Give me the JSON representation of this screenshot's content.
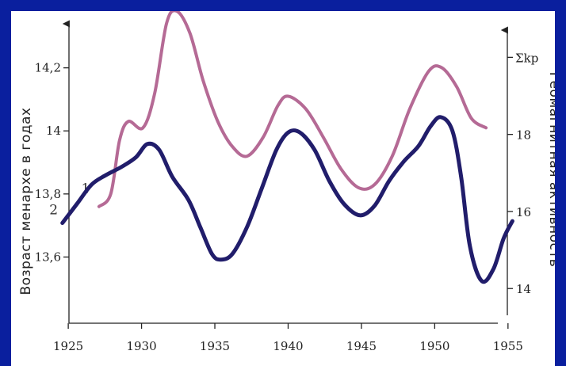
{
  "chart_data": {
    "type": "line",
    "x_ticks": [
      "1925",
      "1930",
      "1935",
      "1940",
      "1945",
      "1950",
      "1955"
    ],
    "y_left": {
      "label": "Возраст менархе в годах",
      "ticks": [
        "13,6",
        "13,8",
        "14",
        "14,2"
      ],
      "tick_values": [
        13.6,
        13.8,
        14.0,
        14.2
      ],
      "range": [
        13.39,
        14.38
      ]
    },
    "y_right": {
      "label": "Геомагнитная активность",
      "ticks": [
        "14",
        "16",
        "18"
      ],
      "tick_values": [
        14,
        16,
        18
      ],
      "unit_label": "Σkp",
      "unit_value": 20,
      "range": [
        13.1,
        21.2
      ]
    },
    "series": [
      {
        "name": "1",
        "axis": "left",
        "color": "#b56a95",
        "points": [
          [
            1927.1,
            13.76
          ],
          [
            1927.9,
            13.8
          ],
          [
            1928.5,
            13.97
          ],
          [
            1929.1,
            14.03
          ],
          [
            1930.1,
            14.01
          ],
          [
            1930.9,
            14.12
          ],
          [
            1931.7,
            14.34
          ],
          [
            1932.4,
            14.38
          ],
          [
            1933.3,
            14.31
          ],
          [
            1934.2,
            14.16
          ],
          [
            1935.2,
            14.03
          ],
          [
            1936.2,
            13.95
          ],
          [
            1937.2,
            13.92
          ],
          [
            1938.3,
            13.98
          ],
          [
            1939.3,
            14.08
          ],
          [
            1940.0,
            14.11
          ],
          [
            1941.2,
            14.07
          ],
          [
            1942.4,
            13.98
          ],
          [
            1943.6,
            13.88
          ],
          [
            1944.8,
            13.82
          ],
          [
            1945.9,
            13.83
          ],
          [
            1947.1,
            13.92
          ],
          [
            1948.3,
            14.07
          ],
          [
            1949.6,
            14.19
          ],
          [
            1950.5,
            14.2
          ],
          [
            1951.5,
            14.14
          ],
          [
            1952.5,
            14.04
          ],
          [
            1953.5,
            14.01
          ]
        ]
      },
      {
        "name": "2",
        "axis": "right",
        "color": "#211d6b",
        "points": [
          [
            1924.6,
            15.7
          ],
          [
            1925.6,
            16.2
          ],
          [
            1926.6,
            16.7
          ],
          [
            1927.6,
            16.95
          ],
          [
            1928.6,
            17.15
          ],
          [
            1929.6,
            17.4
          ],
          [
            1930.4,
            17.75
          ],
          [
            1931.2,
            17.6
          ],
          [
            1932.1,
            16.9
          ],
          [
            1933.2,
            16.3
          ],
          [
            1934.0,
            15.6
          ],
          [
            1934.8,
            14.9
          ],
          [
            1935.4,
            14.75
          ],
          [
            1936.2,
            14.9
          ],
          [
            1937.2,
            15.6
          ],
          [
            1938.2,
            16.6
          ],
          [
            1939.2,
            17.6
          ],
          [
            1940.0,
            18.05
          ],
          [
            1940.8,
            18.05
          ],
          [
            1941.8,
            17.6
          ],
          [
            1942.8,
            16.8
          ],
          [
            1943.8,
            16.2
          ],
          [
            1944.9,
            15.9
          ],
          [
            1945.9,
            16.15
          ],
          [
            1946.9,
            16.8
          ],
          [
            1947.9,
            17.3
          ],
          [
            1948.9,
            17.7
          ],
          [
            1949.7,
            18.2
          ],
          [
            1950.4,
            18.45
          ],
          [
            1951.2,
            18.1
          ],
          [
            1951.8,
            16.9
          ],
          [
            1952.4,
            15.1
          ],
          [
            1953.2,
            14.2
          ],
          [
            1954.0,
            14.5
          ],
          [
            1954.7,
            15.3
          ],
          [
            1955.3,
            15.75
          ]
        ]
      }
    ],
    "x_range": [
      1921.1,
      1958.2
    ],
    "grid": false
  }
}
